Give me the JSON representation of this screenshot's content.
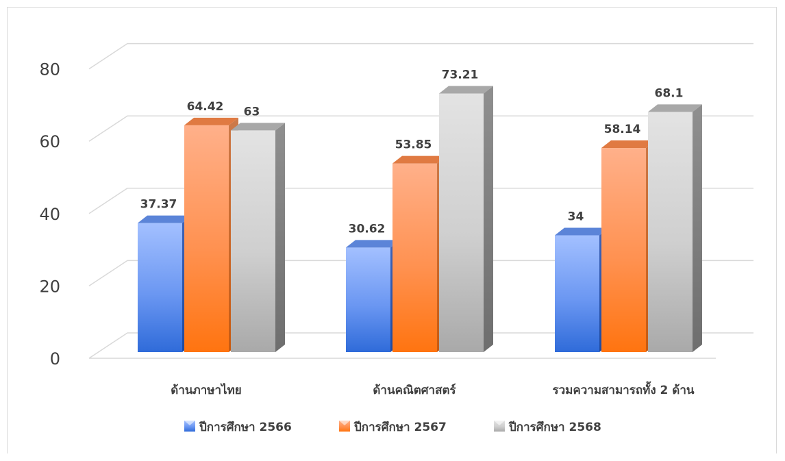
{
  "chart_data": {
    "type": "bar",
    "title": "",
    "xlabel": "",
    "ylabel": "",
    "categories": [
      "ด้านภาษาไทย",
      "ด้านคณิตศาสตร์",
      "รวมความสามารถทั้ง 2 ด้าน"
    ],
    "series": [
      {
        "name": "ปีการศึกษา 2566",
        "values": [
          37.37,
          30.62,
          34
        ],
        "labels": [
          "37.37",
          "30.62",
          "34"
        ],
        "color": "#4a7de0"
      },
      {
        "name": "ปีการศึกษา 2567",
        "values": [
          64.42,
          53.85,
          58.14
        ],
        "labels": [
          "64.42",
          "53.85",
          "58.14"
        ],
        "color": "#ff7f27"
      },
      {
        "name": "ปีการศึกษา 2568",
        "values": [
          63,
          73.21,
          68.1
        ],
        "labels": [
          "63",
          "73.21",
          "68.1"
        ],
        "color": "#bfbfbf"
      }
    ],
    "yticks": [
      "0",
      "20",
      "40",
      "60",
      "80"
    ],
    "ylim": [
      0,
      80
    ],
    "grid": true,
    "legend": "bottom",
    "style": "3d-clustered-column"
  }
}
